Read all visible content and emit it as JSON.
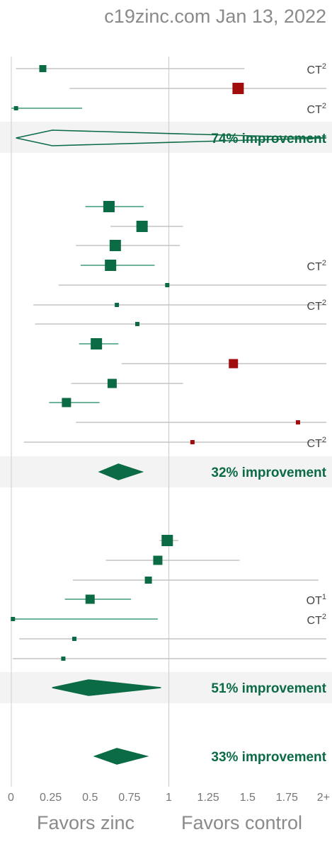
{
  "header": {
    "text": "c19zinc.com Jan 13, 2022"
  },
  "footer": {
    "left_label": "Favors zinc",
    "right_label": "Favors control"
  },
  "colors": {
    "favorable": "#0b6b45",
    "unfavorable": "#a10d0d",
    "ci_line": "#c4c4c4",
    "band": "#f3f3f3",
    "axis_text": "#777777",
    "summary_text": "#0b6b45"
  },
  "chart_data": {
    "type": "forest",
    "x_axis": {
      "range": [
        0,
        2
      ],
      "ticks": [
        "0",
        "0.25",
        "0.5",
        "0.75",
        "1",
        "1.25",
        "1.5",
        "1.75",
        "2+"
      ],
      "reference_line": 1
    },
    "groups": [
      {
        "studies": [
          {
            "est": 0.2,
            "lo": 0.03,
            "hi": 1.48,
            "size": "small",
            "tag": "CT",
            "tag_sup": "2"
          },
          {
            "est": 1.44,
            "lo": 0.37,
            "hi": 2.0,
            "size": "large",
            "tag": "",
            "tag_sup": ""
          },
          {
            "est": 0.03,
            "lo": 0.0,
            "hi": 0.45,
            "size": "tiny",
            "tag": "CT",
            "tag_sup": "2"
          }
        ],
        "summary": {
          "est": 0.26,
          "lo": 0.03,
          "hi": 2.0,
          "filled": false,
          "label": "74% improvement"
        }
      },
      {
        "studies": [
          {
            "est": 0.62,
            "lo": 0.47,
            "hi": 0.84,
            "size": "large",
            "tag": "",
            "tag_sup": ""
          },
          {
            "est": 0.83,
            "lo": 0.63,
            "hi": 1.09,
            "size": "large",
            "tag": "",
            "tag_sup": ""
          },
          {
            "est": 0.66,
            "lo": 0.41,
            "hi": 1.07,
            "size": "large",
            "tag": "",
            "tag_sup": ""
          },
          {
            "est": 0.63,
            "lo": 0.44,
            "hi": 0.91,
            "size": "large",
            "tag": "CT",
            "tag_sup": "2"
          },
          {
            "est": 0.99,
            "lo": 0.3,
            "hi": 2.0,
            "size": "tiny",
            "tag": "",
            "tag_sup": ""
          },
          {
            "est": 0.67,
            "lo": 0.14,
            "hi": 2.0,
            "size": "tiny",
            "tag": "CT",
            "tag_sup": "2"
          },
          {
            "est": 0.8,
            "lo": 0.15,
            "hi": 2.0,
            "size": "tiny",
            "tag": "",
            "tag_sup": ""
          },
          {
            "est": 0.54,
            "lo": 0.43,
            "hi": 0.68,
            "size": "large",
            "tag": "",
            "tag_sup": ""
          },
          {
            "est": 1.41,
            "lo": 0.7,
            "hi": 2.0,
            "size": "medium",
            "tag": "",
            "tag_sup": ""
          },
          {
            "est": 0.64,
            "lo": 0.38,
            "hi": 1.09,
            "size": "medium",
            "tag": "",
            "tag_sup": ""
          },
          {
            "est": 0.35,
            "lo": 0.24,
            "hi": 0.56,
            "size": "medium",
            "tag": "",
            "tag_sup": ""
          },
          {
            "est": 1.82,
            "lo": 0.41,
            "hi": 2.0,
            "size": "tiny",
            "tag": "",
            "tag_sup": ""
          },
          {
            "est": 1.15,
            "lo": 0.08,
            "hi": 2.0,
            "size": "tiny",
            "tag": "CT",
            "tag_sup": "2"
          }
        ],
        "summary": {
          "est": 0.68,
          "lo": 0.56,
          "hi": 0.83,
          "filled": true,
          "label": "32% improvement"
        }
      },
      {
        "studies": [
          {
            "est": 0.99,
            "lo": 0.94,
            "hi": 1.06,
            "size": "large",
            "tag": "",
            "tag_sup": ""
          },
          {
            "est": 0.93,
            "lo": 0.6,
            "hi": 1.45,
            "size": "medium",
            "tag": "",
            "tag_sup": ""
          },
          {
            "est": 0.87,
            "lo": 0.39,
            "hi": 1.95,
            "size": "small",
            "tag": "",
            "tag_sup": ""
          },
          {
            "est": 0.5,
            "lo": 0.34,
            "hi": 0.76,
            "size": "medium",
            "tag": "OT",
            "tag_sup": "1"
          },
          {
            "est": 0.01,
            "lo": 0.0,
            "hi": 0.93,
            "size": "tiny",
            "tag": "CT",
            "tag_sup": "2"
          },
          {
            "est": 0.4,
            "lo": 0.05,
            "hi": 2.0,
            "size": "tiny",
            "tag": "",
            "tag_sup": ""
          },
          {
            "est": 0.33,
            "lo": 0.01,
            "hi": 2.0,
            "size": "tiny",
            "tag": "",
            "tag_sup": ""
          }
        ],
        "summary": {
          "est": 0.49,
          "lo": 0.26,
          "hi": 0.95,
          "filled": true,
          "label": "51% improvement"
        }
      }
    ],
    "overall": {
      "est": 0.67,
      "lo": 0.53,
      "hi": 0.86,
      "filled": true,
      "label": "33% improvement"
    }
  }
}
